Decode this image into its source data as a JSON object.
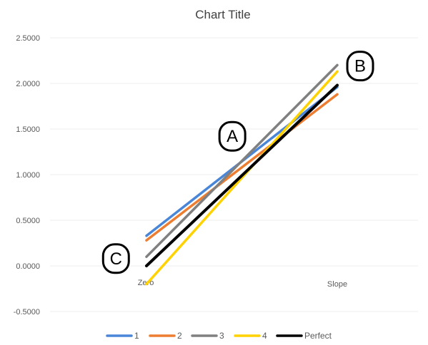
{
  "chart_data": {
    "type": "line",
    "title": "Chart Title",
    "xlabel": "",
    "ylabel": "",
    "categories": [
      "Zero",
      "Slope"
    ],
    "yticks": [
      "2.5000",
      "2.0000",
      "1.5000",
      "1.0000",
      "0.5000",
      "0.0000",
      "-0.5000"
    ],
    "ylim": [
      -0.5,
      2.5
    ],
    "grid": true,
    "legend_position": "bottom",
    "series": [
      {
        "name": "1",
        "color": "#4a86d8",
        "values": [
          0.33,
          1.96
        ]
      },
      {
        "name": "2",
        "color": "#ed7d31",
        "values": [
          0.28,
          1.88
        ]
      },
      {
        "name": "3",
        "color": "#808080",
        "values": [
          0.1,
          2.2
        ]
      },
      {
        "name": "4",
        "color": "#ffd200",
        "values": [
          -0.2,
          2.13
        ]
      },
      {
        "name": "Perfect",
        "color": "#000000",
        "values": [
          0.0,
          1.98
        ]
      }
    ],
    "annotations": [
      {
        "label": "A",
        "x": 0.45,
        "y": 1.42
      },
      {
        "label": "B",
        "x": 1.12,
        "y": 2.19
      },
      {
        "label": "C",
        "x": -0.16,
        "y": 0.08
      }
    ]
  }
}
